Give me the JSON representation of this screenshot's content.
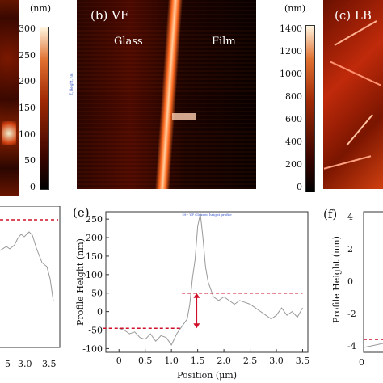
{
  "panels": {
    "a": {
      "scalebar_unit": "(nm)",
      "scalebar_ticks": [
        "300",
        "250",
        "200",
        "150",
        "100",
        "50",
        "0"
      ],
      "profile_xticks": [
        "3.0",
        "3.5"
      ],
      "profile_xtick_left": "5"
    },
    "b": {
      "title": "(b) VF",
      "label_glass": "Glass",
      "label_film": "Film",
      "scalebar_unit": "(nm)",
      "scalebar_ticks": [
        "1400",
        "1200",
        "1000",
        "800",
        "600",
        "400",
        "200",
        "0"
      ],
      "small_axis_label": "Z, Height, nm"
    },
    "c": {
      "title": "(c) LB"
    },
    "e": {
      "title": "(e)",
      "plot_title": "29 - VF Cleaned height profile",
      "ylabel": "Profile Height (nm)",
      "xlabel": "Position (μm)",
      "yticks": [
        "250",
        "200",
        "150",
        "100",
        "50",
        "0",
        "-50",
        "-100"
      ],
      "xticks": [
        "0",
        "0.5",
        "1.0",
        "1.5",
        "2.0",
        "2.5",
        "3.0",
        "3.5"
      ]
    },
    "f": {
      "title": "(f)",
      "ylabel": "Profile Height (nm)",
      "yticks": [
        "4",
        "2",
        "0",
        "-2",
        "-4"
      ],
      "xtick": "0"
    }
  },
  "colors": {
    "afm_dark": "#1a0500",
    "afm_mid": "#8a1a00",
    "afm_bright": "#e0501a",
    "guide_line": "#d0102a",
    "profile_line": "#999999"
  },
  "chart_data": {
    "type": "line",
    "title": "29 - VF Cleaned height profile",
    "xlabel": "Position (μm)",
    "ylabel": "Profile Height (nm)",
    "xlim": [
      -0.25,
      3.6
    ],
    "ylim": [
      -110,
      270
    ],
    "x": [
      0,
      0.1,
      0.2,
      0.3,
      0.4,
      0.5,
      0.6,
      0.7,
      0.8,
      0.9,
      1.0,
      1.1,
      1.2,
      1.3,
      1.35,
      1.4,
      1.45,
      1.5,
      1.55,
      1.6,
      1.65,
      1.7,
      1.75,
      1.8,
      1.9,
      2.0,
      2.1,
      2.2,
      2.3,
      2.4,
      2.5,
      2.6,
      2.7,
      2.8,
      2.9,
      3.0,
      3.1,
      3.2,
      3.3,
      3.4,
      3.5
    ],
    "values": [
      -45,
      -50,
      -60,
      -55,
      -70,
      -75,
      -60,
      -80,
      -65,
      -70,
      -90,
      -60,
      -40,
      -20,
      20,
      90,
      140,
      230,
      265,
      200,
      120,
      80,
      60,
      40,
      30,
      40,
      30,
      20,
      30,
      25,
      20,
      10,
      0,
      -10,
      -20,
      -10,
      10,
      -10,
      0,
      -15,
      10
    ],
    "reference_lines": [
      {
        "y": -45,
        "x_range": [
          -0.3,
          1.2
        ]
      },
      {
        "y": 50,
        "x_range": [
          1.2,
          3.5
        ]
      }
    ]
  }
}
